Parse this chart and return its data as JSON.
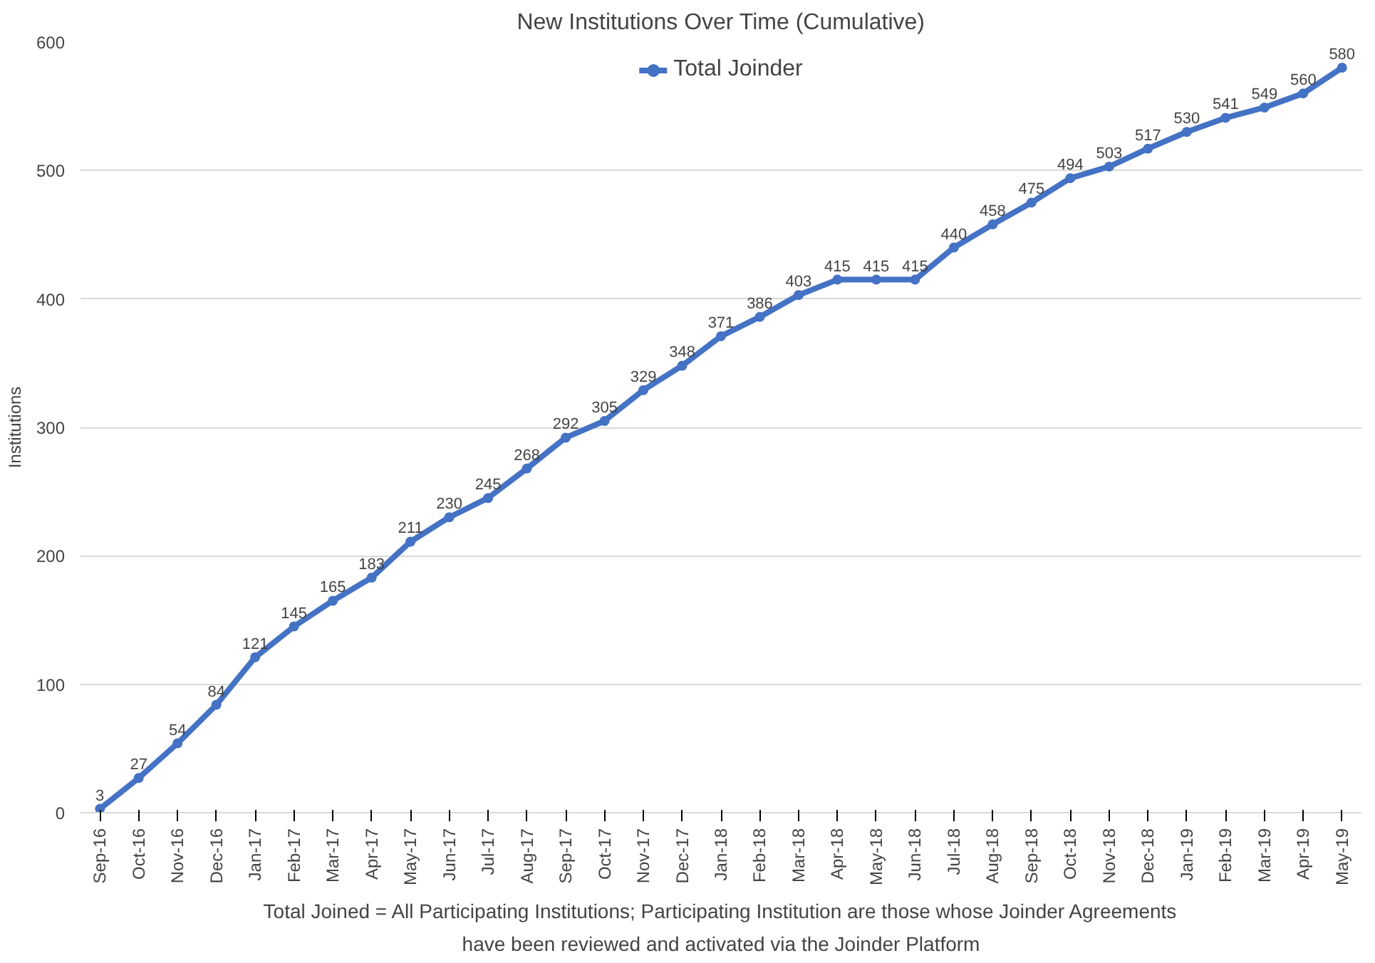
{
  "chart_data": {
    "type": "line",
    "title": "New Institutions Over Time (Cumulative)",
    "ylabel": "Institutions",
    "categories": [
      "Sep-16",
      "Oct-16",
      "Nov-16",
      "Dec-16",
      "Jan-17",
      "Feb-17",
      "Mar-17",
      "Apr-17",
      "May-17",
      "Jun-17",
      "Jul-17",
      "Aug-17",
      "Sep-17",
      "Oct-17",
      "Nov-17",
      "Dec-17",
      "Jan-18",
      "Feb-18",
      "Mar-18",
      "Apr-18",
      "May-18",
      "Jun-18",
      "Jul-18",
      "Aug-18",
      "Sep-18",
      "Oct-18",
      "Nov-18",
      "Dec-18",
      "Jan-19",
      "Feb-19",
      "Mar-19",
      "Apr-19",
      "May-19"
    ],
    "series": [
      {
        "name": "Total Joinder",
        "color": "#4472c4",
        "values": [
          3,
          27,
          54,
          84,
          121,
          145,
          165,
          183,
          211,
          230,
          245,
          268,
          292,
          305,
          329,
          348,
          371,
          386,
          403,
          415,
          415,
          415,
          440,
          458,
          475,
          494,
          503,
          517,
          530,
          541,
          549,
          560,
          580
        ]
      }
    ],
    "ylim": [
      0,
      600
    ],
    "yticks": [
      0,
      100,
      200,
      300,
      400,
      500,
      600
    ],
    "grid": "y",
    "legend": "top",
    "marker": "circle",
    "line_style": "solid",
    "data_labels": true,
    "annotations": [
      "Total Joined = All Participating Institutions; Participating Institution are those whose Joinder Agreements",
      "have been reviewed and activated via the Joinder Platform"
    ]
  }
}
